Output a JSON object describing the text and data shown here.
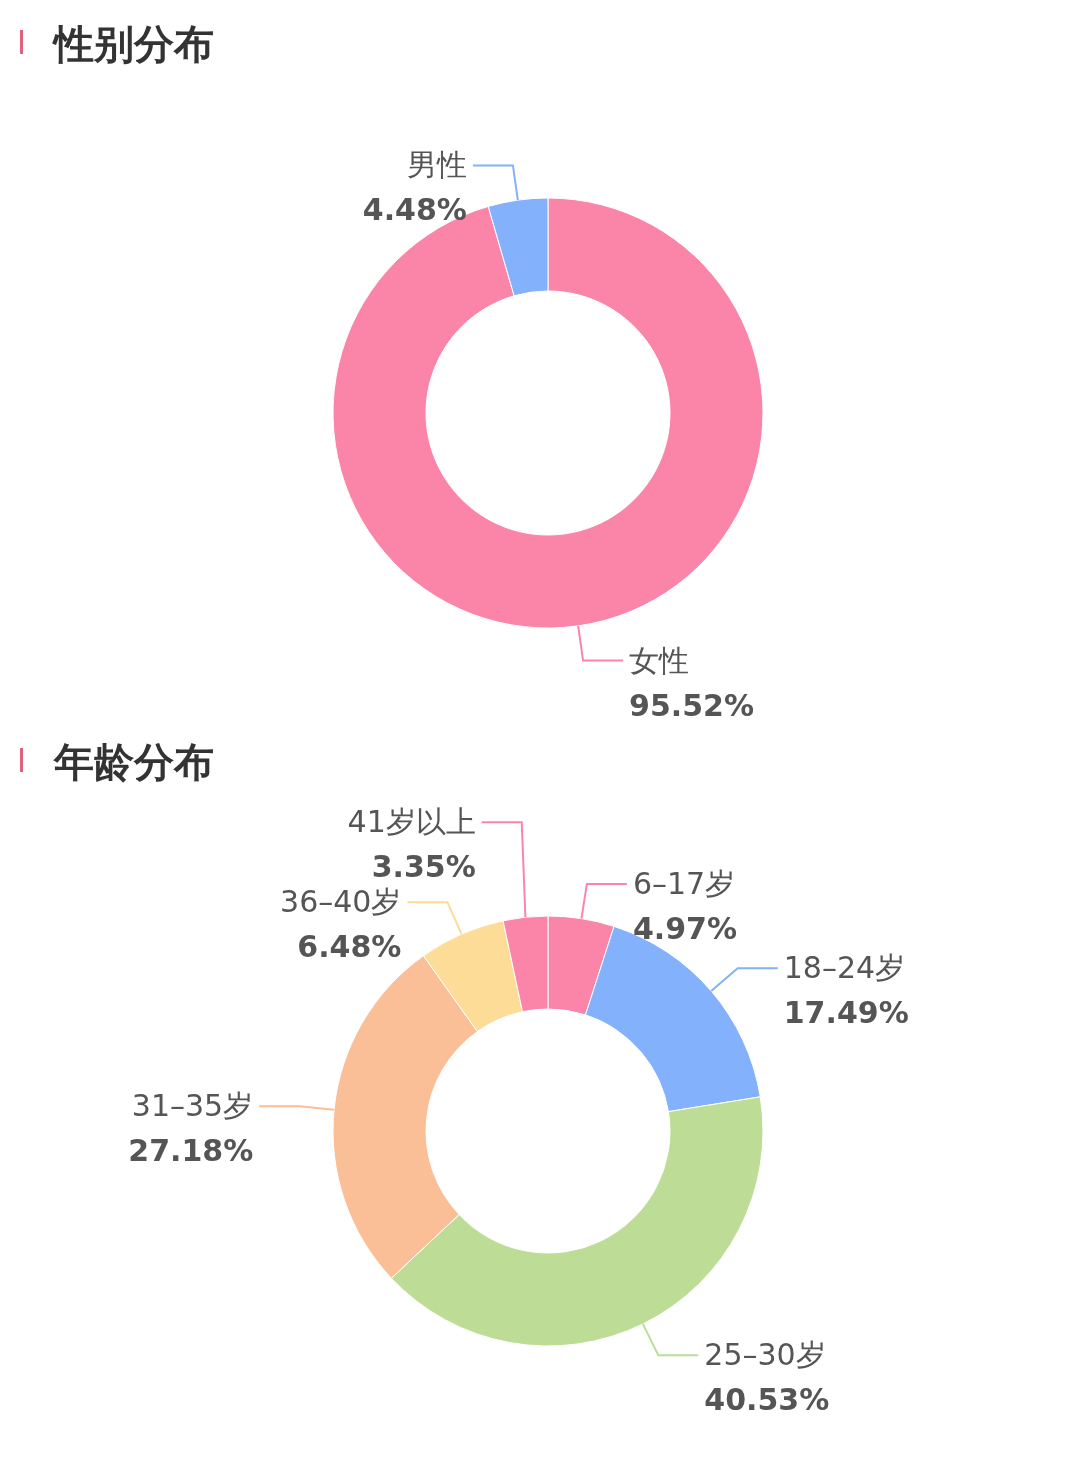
{
  "chart_data": [
    {
      "type": "donut",
      "title": "性别分布",
      "categories": [
        "女性",
        "男性"
      ],
      "values": [
        95.52,
        4.48
      ],
      "colors": [
        "#fb85a8",
        "#84b1fb"
      ],
      "value_labels": [
        "95.52%",
        "4.48%"
      ]
    },
    {
      "type": "donut",
      "title": "年龄分布",
      "categories": [
        "6–17岁",
        "18–24岁",
        "25–30岁",
        "31–35岁",
        "36–40岁",
        "41岁以上"
      ],
      "values": [
        4.97,
        17.49,
        40.53,
        27.18,
        6.48,
        3.35
      ],
      "colors": [
        "#fb85a8",
        "#84b1fb",
        "#bddd96",
        "#fbbf98",
        "#fcdc96",
        "#fb85a8"
      ],
      "value_labels": [
        "4.97%",
        "17.49%",
        "40.53%",
        "27.18%",
        "6.48%",
        "3.35%"
      ]
    }
  ]
}
